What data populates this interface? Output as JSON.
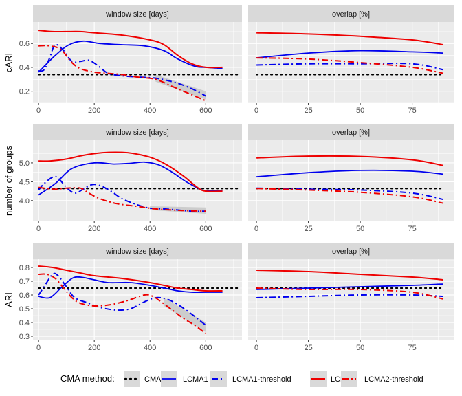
{
  "colors": {
    "CMA9": "#000000",
    "LCMA1": "#0000ee",
    "LCMA1-threshold": "#0000ee",
    "LCMA2": "#ee0000",
    "LCMA2-threshold": "#ee0000",
    "panel_bg": "#ebebeb",
    "strip_bg": "#d9d9d9",
    "grid": "#ffffff",
    "ribbon": "#bfbfbf"
  },
  "legend": {
    "title": "CMA method:",
    "items": [
      {
        "key": "CMA9",
        "label": "CMA9"
      },
      {
        "key": "LCMA1",
        "label": "LCMA1"
      },
      {
        "key": "LCMA1-threshold",
        "label": "LCMA1-threshold"
      },
      {
        "key": "LCMA2",
        "label": "LCMA2"
      },
      {
        "key": "LCMA2-threshold",
        "label": "LCMA2-threshold"
      }
    ]
  },
  "chart_data": [
    {
      "type": "line",
      "row": 0,
      "col": 0,
      "strip": "window size [days]",
      "ylabel": "cARI",
      "xlim": [
        -20,
        730
      ],
      "ylim": [
        0.1,
        0.78
      ],
      "xticks": [
        0,
        200,
        400,
        600
      ],
      "xticklabels": [
        "0",
        "200",
        "400",
        "600"
      ],
      "yticks": [
        0.2,
        0.4,
        0.6
      ],
      "yticklabels": [
        "0.2",
        "0.4",
        "0.6"
      ],
      "ribbon": {
        "series": "LCMA1-threshold",
        "x": [
          420,
          600
        ],
        "lower": [
          0.28,
          0.13
        ],
        "upper": [
          0.34,
          0.2
        ]
      },
      "series": [
        {
          "name": "CMA9",
          "x": [
            0,
            720
          ],
          "values": [
            0.34,
            0.34
          ]
        },
        {
          "name": "LCMA1",
          "x": [
            0,
            60,
            110,
            160,
            220,
            300,
            380,
            450,
            500,
            560,
            600,
            660
          ],
          "values": [
            0.36,
            0.5,
            0.59,
            0.62,
            0.6,
            0.59,
            0.58,
            0.54,
            0.47,
            0.41,
            0.4,
            0.39
          ]
        },
        {
          "name": "LCMA1-threshold",
          "x": [
            0,
            20,
            40,
            60,
            90,
            120,
            150,
            180,
            210,
            250,
            300,
            350,
            420,
            480,
            520,
            560,
            600
          ],
          "values": [
            0.37,
            0.38,
            0.48,
            0.59,
            0.54,
            0.45,
            0.45,
            0.46,
            0.42,
            0.35,
            0.33,
            0.32,
            0.31,
            0.28,
            0.25,
            0.21,
            0.16
          ]
        },
        {
          "name": "LCMA2",
          "x": [
            0,
            50,
            100,
            150,
            200,
            300,
            400,
            450,
            500,
            550,
            600,
            660
          ],
          "values": [
            0.71,
            0.7,
            0.7,
            0.7,
            0.69,
            0.67,
            0.63,
            0.59,
            0.5,
            0.43,
            0.4,
            0.4
          ]
        },
        {
          "name": "LCMA2-threshold",
          "x": [
            0,
            40,
            80,
            120,
            150,
            200,
            250,
            300,
            350,
            420,
            480,
            540,
            600
          ],
          "values": [
            0.58,
            0.58,
            0.55,
            0.44,
            0.39,
            0.36,
            0.35,
            0.34,
            0.32,
            0.3,
            0.24,
            0.18,
            0.12
          ]
        }
      ]
    },
    {
      "type": "line",
      "row": 0,
      "col": 1,
      "strip": "overlap [%]",
      "ylabel": "",
      "xlim": [
        -4,
        95
      ],
      "ylim": [
        0.1,
        0.78
      ],
      "xticks": [
        0,
        25,
        50,
        75
      ],
      "xticklabels": [
        "0",
        "25",
        "50",
        "75"
      ],
      "series": [
        {
          "name": "CMA9",
          "x": [
            0,
            90
          ],
          "values": [
            0.34,
            0.34
          ]
        },
        {
          "name": "LCMA1",
          "x": [
            0,
            25,
            50,
            75,
            90
          ],
          "values": [
            0.48,
            0.52,
            0.54,
            0.53,
            0.52
          ]
        },
        {
          "name": "LCMA1-threshold",
          "x": [
            0,
            25,
            50,
            75,
            90
          ],
          "values": [
            0.42,
            0.43,
            0.43,
            0.43,
            0.38
          ]
        },
        {
          "name": "LCMA2",
          "x": [
            0,
            25,
            50,
            75,
            90
          ],
          "values": [
            0.69,
            0.68,
            0.66,
            0.63,
            0.59
          ]
        },
        {
          "name": "LCMA2-threshold",
          "x": [
            0,
            25,
            50,
            75,
            90
          ],
          "values": [
            0.48,
            0.47,
            0.44,
            0.4,
            0.35
          ]
        }
      ]
    },
    {
      "type": "line",
      "row": 1,
      "col": 0,
      "strip": "window size [days]",
      "ylabel": "number of groups",
      "xlim": [
        -20,
        730
      ],
      "ylim": [
        3.45,
        5.6
      ],
      "xticks": [
        0,
        200,
        400,
        600
      ],
      "xticklabels": [
        "0",
        "200",
        "400",
        "600"
      ],
      "yticks": [
        4.0,
        4.5,
        5.0
      ],
      "yticklabels": [
        "4.0",
        "4.5",
        "5.0"
      ],
      "ribbon": {
        "series": "LCMA1-threshold",
        "x": [
          400,
          600
        ],
        "lower": [
          3.75,
          3.65
        ],
        "upper": [
          3.85,
          3.82
        ]
      },
      "series": [
        {
          "name": "CMA9",
          "x": [
            0,
            720
          ],
          "values": [
            4.32,
            4.32
          ]
        },
        {
          "name": "LCMA1",
          "x": [
            0,
            60,
            120,
            200,
            270,
            330,
            380,
            430,
            480,
            530,
            580,
            600,
            660
          ],
          "values": [
            4.15,
            4.45,
            4.85,
            5.0,
            4.97,
            4.99,
            5.02,
            4.95,
            4.75,
            4.5,
            4.3,
            4.27,
            4.27
          ]
        },
        {
          "name": "LCMA1-threshold",
          "x": [
            0,
            20,
            50,
            70,
            100,
            130,
            160,
            190,
            220,
            260,
            300,
            350,
            400,
            450,
            500,
            550,
            600
          ],
          "values": [
            4.28,
            4.45,
            4.62,
            4.6,
            4.35,
            4.2,
            4.3,
            4.42,
            4.4,
            4.25,
            4.05,
            3.9,
            3.8,
            3.78,
            3.75,
            3.72,
            3.72
          ]
        },
        {
          "name": "LCMA2",
          "x": [
            0,
            40,
            100,
            160,
            230,
            300,
            340,
            400,
            460,
            520,
            570,
            600,
            660
          ],
          "values": [
            5.05,
            5.05,
            5.1,
            5.2,
            5.27,
            5.28,
            5.25,
            5.15,
            4.95,
            4.65,
            4.35,
            4.25,
            4.25
          ]
        },
        {
          "name": "LCMA2-threshold",
          "x": [
            0,
            30,
            60,
            100,
            150,
            180,
            220,
            280,
            350,
            420,
            480,
            540,
            600
          ],
          "values": [
            4.35,
            4.32,
            4.3,
            4.33,
            4.33,
            4.2,
            4.05,
            3.92,
            3.85,
            3.78,
            3.75,
            3.73,
            3.72
          ]
        }
      ]
    },
    {
      "type": "line",
      "row": 1,
      "col": 1,
      "strip": "overlap [%]",
      "ylabel": "",
      "xlim": [
        -4,
        95
      ],
      "ylim": [
        3.45,
        5.6
      ],
      "xticks": [
        0,
        25,
        50,
        75
      ],
      "xticklabels": [
        "0",
        "25",
        "50",
        "75"
      ],
      "series": [
        {
          "name": "CMA9",
          "x": [
            0,
            90
          ],
          "values": [
            4.32,
            4.32
          ]
        },
        {
          "name": "LCMA1",
          "x": [
            0,
            25,
            50,
            75,
            90
          ],
          "values": [
            4.63,
            4.74,
            4.8,
            4.78,
            4.7
          ]
        },
        {
          "name": "LCMA1-threshold",
          "x": [
            0,
            25,
            50,
            75,
            90
          ],
          "values": [
            4.33,
            4.3,
            4.28,
            4.2,
            4.03
          ]
        },
        {
          "name": "LCMA2",
          "x": [
            0,
            25,
            50,
            75,
            90
          ],
          "values": [
            5.13,
            5.18,
            5.17,
            5.08,
            4.93
          ]
        },
        {
          "name": "LCMA2-threshold",
          "x": [
            0,
            25,
            50,
            75,
            90
          ],
          "values": [
            4.32,
            4.28,
            4.22,
            4.1,
            3.93
          ]
        }
      ]
    },
    {
      "type": "line",
      "row": 2,
      "col": 0,
      "strip": "window size [days]",
      "ylabel": "ARI",
      "xlim": [
        -20,
        730
      ],
      "ylim": [
        0.27,
        0.86
      ],
      "xticks": [
        0,
        200,
        400,
        600
      ],
      "xticklabels": [
        "0",
        "200",
        "400",
        "600"
      ],
      "yticks": [
        0.3,
        0.4,
        0.5,
        0.6,
        0.7,
        0.8
      ],
      "yticklabels": [
        "0.3",
        "0.4",
        "0.5",
        "0.6",
        "0.7",
        "0.8"
      ],
      "ribbon": {
        "series": "LCMA1-threshold",
        "x": [
          450,
          600
        ],
        "lower": [
          0.52,
          0.33
        ],
        "upper": [
          0.58,
          0.4
        ]
      },
      "series": [
        {
          "name": "CMA9",
          "x": [
            0,
            720
          ],
          "values": [
            0.65,
            0.65
          ]
        },
        {
          "name": "LCMA1",
          "x": [
            0,
            40,
            80,
            120,
            150,
            200,
            250,
            330,
            400,
            450,
            500,
            550,
            600,
            660
          ],
          "values": [
            0.59,
            0.58,
            0.65,
            0.72,
            0.73,
            0.71,
            0.69,
            0.69,
            0.67,
            0.65,
            0.63,
            0.62,
            0.62,
            0.62
          ]
        },
        {
          "name": "LCMA1-threshold",
          "x": [
            0,
            20,
            50,
            70,
            100,
            130,
            180,
            220,
            280,
            330,
            380,
            420,
            460,
            500,
            550,
            600
          ],
          "values": [
            0.6,
            0.66,
            0.75,
            0.74,
            0.66,
            0.58,
            0.54,
            0.51,
            0.49,
            0.5,
            0.55,
            0.58,
            0.57,
            0.53,
            0.46,
            0.38
          ]
        },
        {
          "name": "LCMA2",
          "x": [
            0,
            50,
            100,
            150,
            200,
            300,
            400,
            450,
            500,
            550,
            600,
            660
          ],
          "values": [
            0.81,
            0.8,
            0.78,
            0.76,
            0.74,
            0.72,
            0.69,
            0.67,
            0.65,
            0.64,
            0.63,
            0.63
          ]
        },
        {
          "name": "LCMA2-threshold",
          "x": [
            0,
            30,
            60,
            90,
            120,
            150,
            200,
            260,
            320,
            380,
            410,
            440,
            480,
            520,
            560,
            600
          ],
          "values": [
            0.75,
            0.75,
            0.72,
            0.65,
            0.58,
            0.54,
            0.52,
            0.53,
            0.56,
            0.6,
            0.59,
            0.55,
            0.49,
            0.43,
            0.38,
            0.32
          ]
        }
      ]
    },
    {
      "type": "line",
      "row": 2,
      "col": 1,
      "strip": "overlap [%]",
      "ylabel": "",
      "xlim": [
        -4,
        95
      ],
      "ylim": [
        0.27,
        0.86
      ],
      "xticks": [
        0,
        25,
        50,
        75
      ],
      "xticklabels": [
        "0",
        "25",
        "50",
        "75"
      ],
      "series": [
        {
          "name": "CMA9",
          "x": [
            0,
            90
          ],
          "values": [
            0.65,
            0.65
          ]
        },
        {
          "name": "LCMA1",
          "x": [
            0,
            25,
            50,
            75,
            90
          ],
          "values": [
            0.64,
            0.65,
            0.66,
            0.67,
            0.68
          ]
        },
        {
          "name": "LCMA1-threshold",
          "x": [
            0,
            25,
            50,
            75,
            90
          ],
          "values": [
            0.58,
            0.59,
            0.6,
            0.6,
            0.59
          ]
        },
        {
          "name": "LCMA2",
          "x": [
            0,
            25,
            50,
            75,
            90
          ],
          "values": [
            0.78,
            0.77,
            0.75,
            0.73,
            0.71
          ]
        },
        {
          "name": "LCMA2-threshold",
          "x": [
            0,
            25,
            50,
            75,
            90
          ],
          "values": [
            0.65,
            0.64,
            0.64,
            0.62,
            0.57
          ]
        }
      ]
    }
  ]
}
